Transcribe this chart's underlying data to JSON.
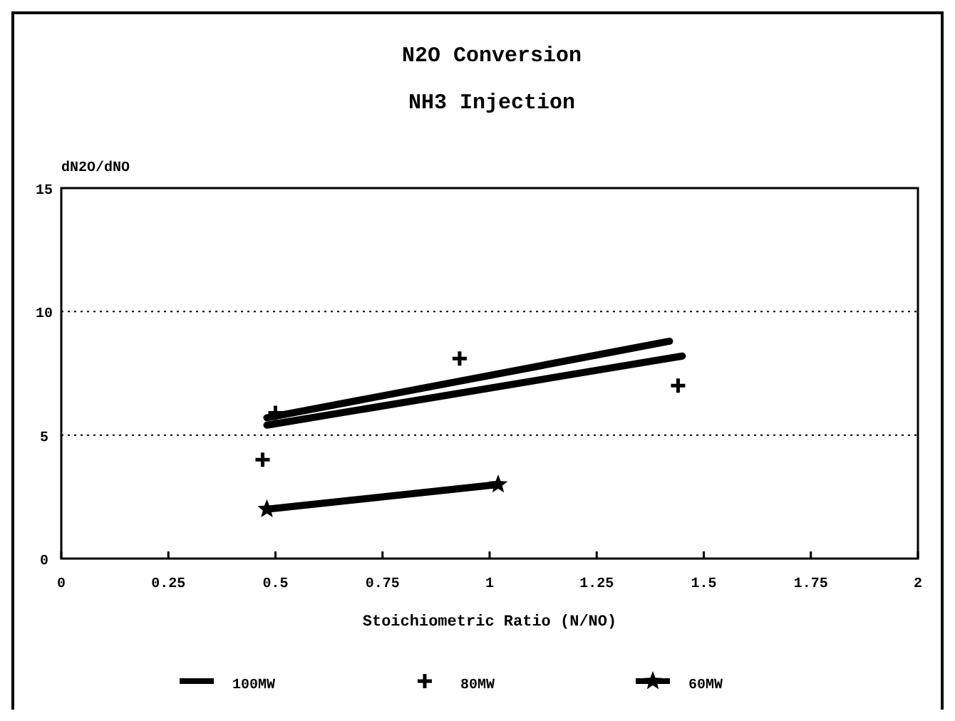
{
  "chart_data": {
    "type": "line",
    "title": "N2O Conversion",
    "subtitle": "NH3 Injection",
    "xlabel": "Stoichiometric Ratio (N/NO)",
    "ylabel": "dN2O/dNO",
    "xlim": [
      0,
      2
    ],
    "xticks": [
      0,
      0.25,
      0.5,
      0.75,
      1,
      1.25,
      1.5,
      1.75,
      2
    ],
    "ylim": [
      0,
      15
    ],
    "yticks": [
      0,
      5,
      10,
      15
    ],
    "grid": "y",
    "legend": "bottom",
    "series": [
      {
        "name": "100MW",
        "color": "#000000",
        "marker": "none",
        "x": [
          0.48,
          1.42
        ],
        "values": [
          5.7,
          8.8
        ]
      },
      {
        "color": "#000000",
        "marker": "none",
        "x": [
          0.48,
          1.45
        ],
        "values": [
          5.4,
          8.2
        ]
      },
      {
        "name": "80MW",
        "color": "#000000",
        "type": "scatter",
        "marker": "cross",
        "x": [
          0.47,
          0.5,
          0.93,
          1.44
        ],
        "values": [
          4.0,
          5.9,
          8.1,
          7.0
        ]
      },
      {
        "name": "60MW",
        "color": "#000000",
        "marker": "star",
        "x": [
          0.48,
          1.02
        ],
        "values": [
          2.0,
          3.0
        ]
      }
    ]
  }
}
